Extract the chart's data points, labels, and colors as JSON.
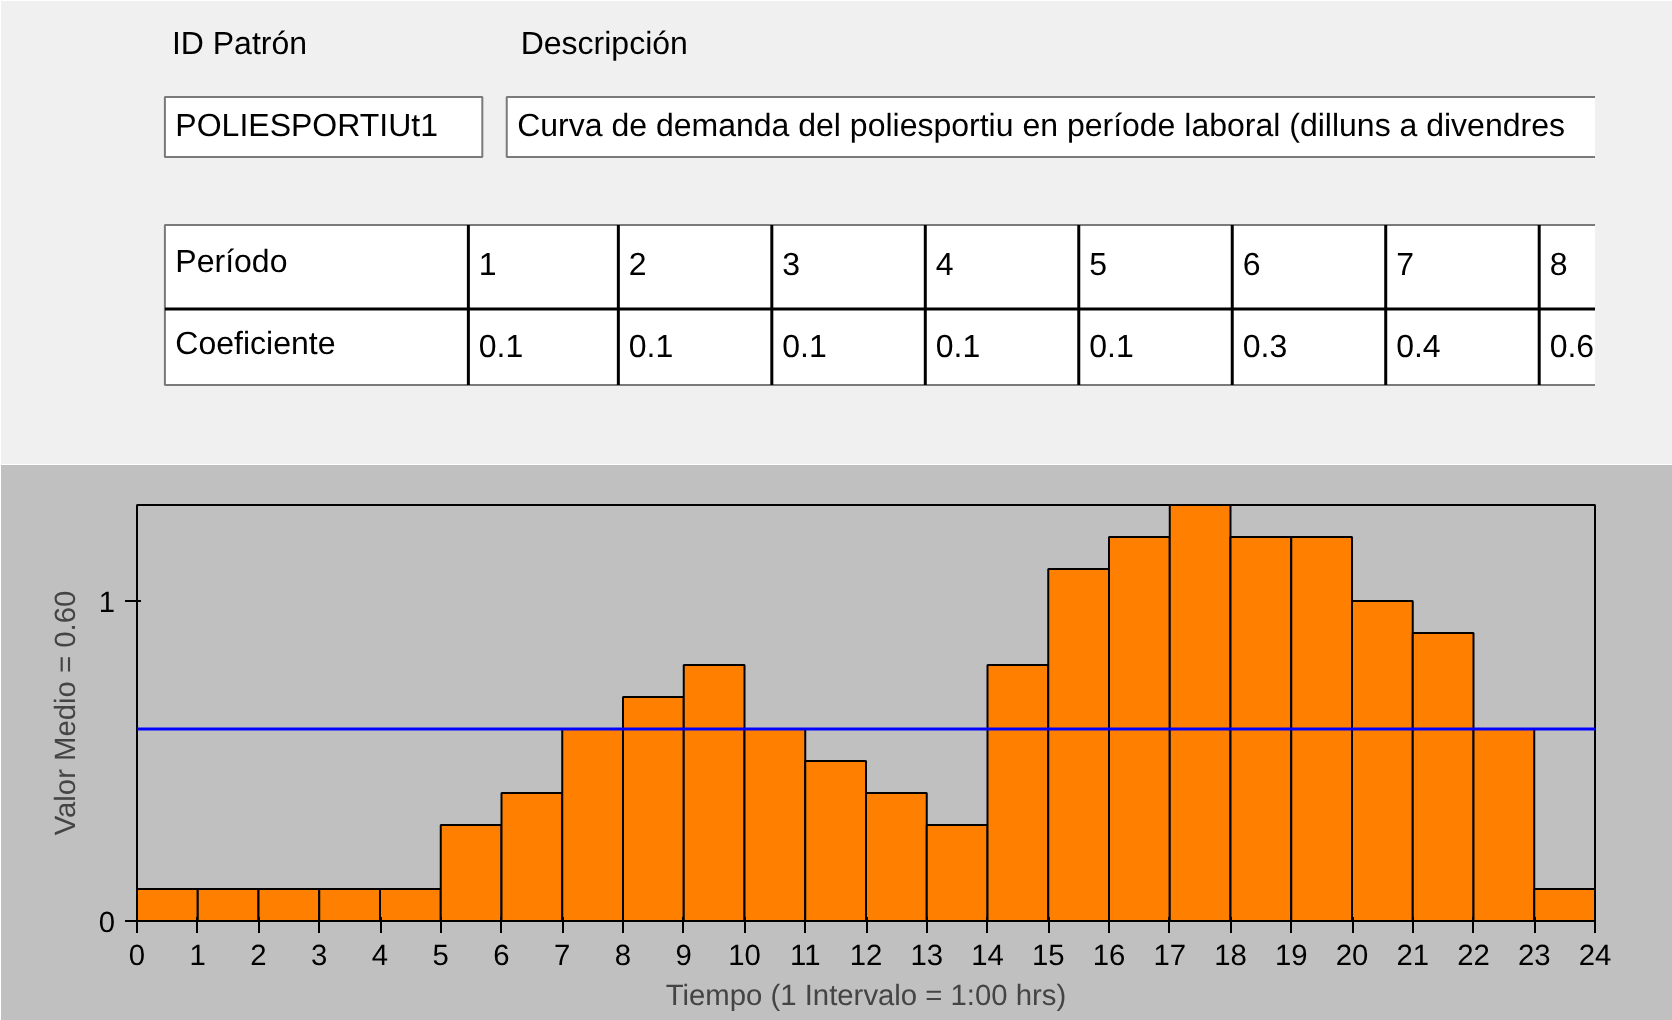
{
  "chart_data": {
    "type": "histogram",
    "xlabel": "Tiempo (1 Intervalo = 1:00 hrs)",
    "ylabel": "Valor Medio = 0.60",
    "bins": [
      0,
      1,
      2,
      3,
      4,
      5,
      6,
      7,
      8,
      9,
      10,
      11,
      12,
      13,
      14,
      15,
      16,
      17,
      18,
      19,
      20,
      21,
      22,
      23,
      24
    ],
    "values": [
      0.1,
      0.1,
      0.1,
      0.1,
      0.1,
      0.3,
      0.4,
      0.6,
      0.7,
      0.8,
      0.6,
      0.5,
      0.4,
      0.3,
      0.8,
      1.1,
      1.2,
      1.3,
      1.2,
      1.2,
      1.0,
      0.9,
      0.6,
      0.1
    ],
    "color": "#ff8000",
    "xlim": [
      0,
      24
    ],
    "xticks": [
      0,
      1,
      2,
      3,
      4,
      5,
      6,
      7,
      8,
      9,
      10,
      11,
      12,
      13,
      14,
      15,
      16,
      17,
      18,
      19,
      20,
      21,
      22,
      23,
      24
    ],
    "ylim": [
      0,
      1.3
    ],
    "yticks": [
      0,
      1
    ],
    "ref_lines": [
      {
        "axis": "y",
        "value": 0.6,
        "color": "#0000ff"
      }
    ],
    "grid": false,
    "annotations": [
      "ID Patrón",
      "Descripción",
      "POLIESPORTIUt1",
      "Curva de demanda del poliesportiu en període laboral (dilluns a divendres",
      "Período",
      "Coeficiente",
      "1",
      "2",
      "3",
      "4",
      "5",
      "6",
      "7",
      "8",
      "0.1",
      "0.1",
      "0.1",
      "0.1",
      "0.1",
      "0.3",
      "0.4",
      "0.6"
    ]
  }
}
